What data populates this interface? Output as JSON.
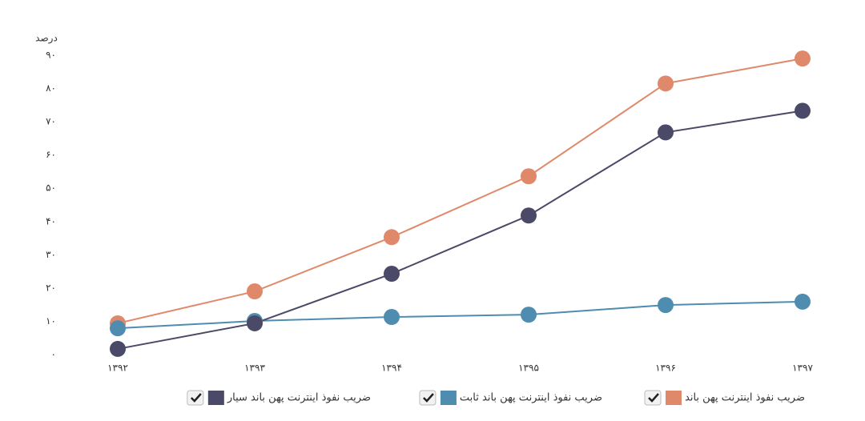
{
  "chart_data": {
    "type": "line",
    "y_label": "درصد",
    "categories": [
      "۱۳۹۲",
      "۱۳۹۳",
      "۱۳۹۴",
      "۱۳۹۵",
      "۱۳۹۶",
      "۱۳۹۷"
    ],
    "series": [
      {
        "name": "ضریب نفوذ اینترنت پهن باند",
        "color": "#e0896a",
        "values": [
          9.4,
          19,
          35.3,
          53.6,
          81.5,
          89
        ]
      },
      {
        "name": "ضریب نفوذ اینترنت پهن باند ثابت",
        "color": "#4e8db0",
        "values": [
          7.9,
          10.1,
          11.3,
          12,
          14.9,
          15.9
        ]
      },
      {
        "name": "ضریب نفوذ اینترنت پهن باند سیار",
        "color": "#4a4a68",
        "values": [
          1.7,
          9.4,
          24.3,
          41.8,
          66.8,
          73.3
        ]
      }
    ],
    "ylim": [
      0,
      90
    ],
    "yticks": [
      {
        "value": 0,
        "label": "۰"
      },
      {
        "value": 10,
        "label": "۱۰"
      },
      {
        "value": 20,
        "label": "۲۰"
      },
      {
        "value": 30,
        "label": "۳۰"
      },
      {
        "value": 40,
        "label": "۴۰"
      },
      {
        "value": 50,
        "label": "۵۰"
      },
      {
        "value": 60,
        "label": "۶۰"
      },
      {
        "value": 70,
        "label": "۷۰"
      },
      {
        "value": 80,
        "label": "۸۰"
      },
      {
        "value": 90,
        "label": "۹۰"
      }
    ],
    "grid": false,
    "legend": "bottom"
  }
}
